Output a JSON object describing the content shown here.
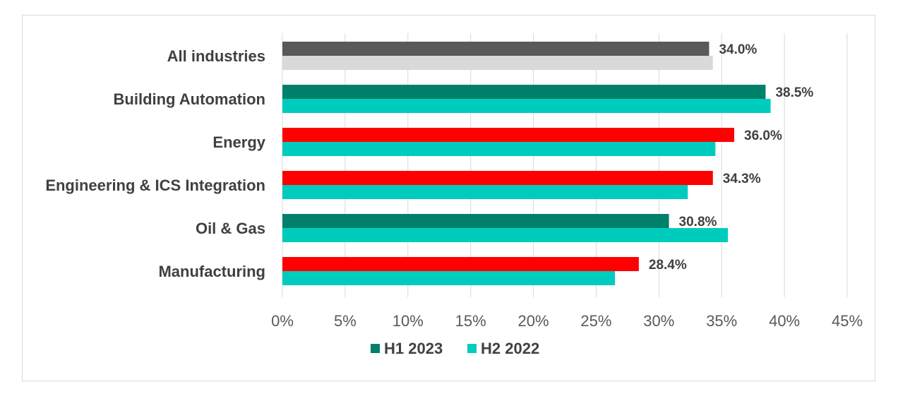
{
  "chart_data": {
    "type": "bar",
    "orientation": "horizontal",
    "categories": [
      "All industries",
      "Building Automation",
      "Energy",
      "Engineering & ICS Integration",
      "Oil & Gas",
      "Manufacturing"
    ],
    "series": [
      {
        "name": "H1 2023",
        "values": [
          34.0,
          38.5,
          36.0,
          34.3,
          30.8,
          28.4
        ],
        "data_labels": [
          "34.0%",
          "38.5%",
          "36.0%",
          "34.3%",
          "30.8%",
          "28.4%"
        ],
        "colors": [
          "#595959",
          "#00806A",
          "#FF0000",
          "#FF0000",
          "#00806A",
          "#FF0000"
        ],
        "legend_color": "#00806A"
      },
      {
        "name": "H2 2022",
        "values": [
          34.3,
          38.9,
          34.5,
          32.3,
          35.5,
          26.5
        ],
        "colors": [
          "#D9D9D9",
          "#00CCBE",
          "#00CCBE",
          "#00CCBE",
          "#00CCBE",
          "#00CCBE"
        ],
        "legend_color": "#00CCBE"
      }
    ],
    "x_ticks": [
      "0%",
      "5%",
      "10%",
      "15%",
      "20%",
      "25%",
      "30%",
      "35%",
      "40%",
      "45%"
    ],
    "xlim": [
      0,
      45
    ],
    "x_tick_step": 5,
    "grid": "vertical",
    "legend": "bottom",
    "title": "",
    "xlabel": "",
    "ylabel": ""
  }
}
